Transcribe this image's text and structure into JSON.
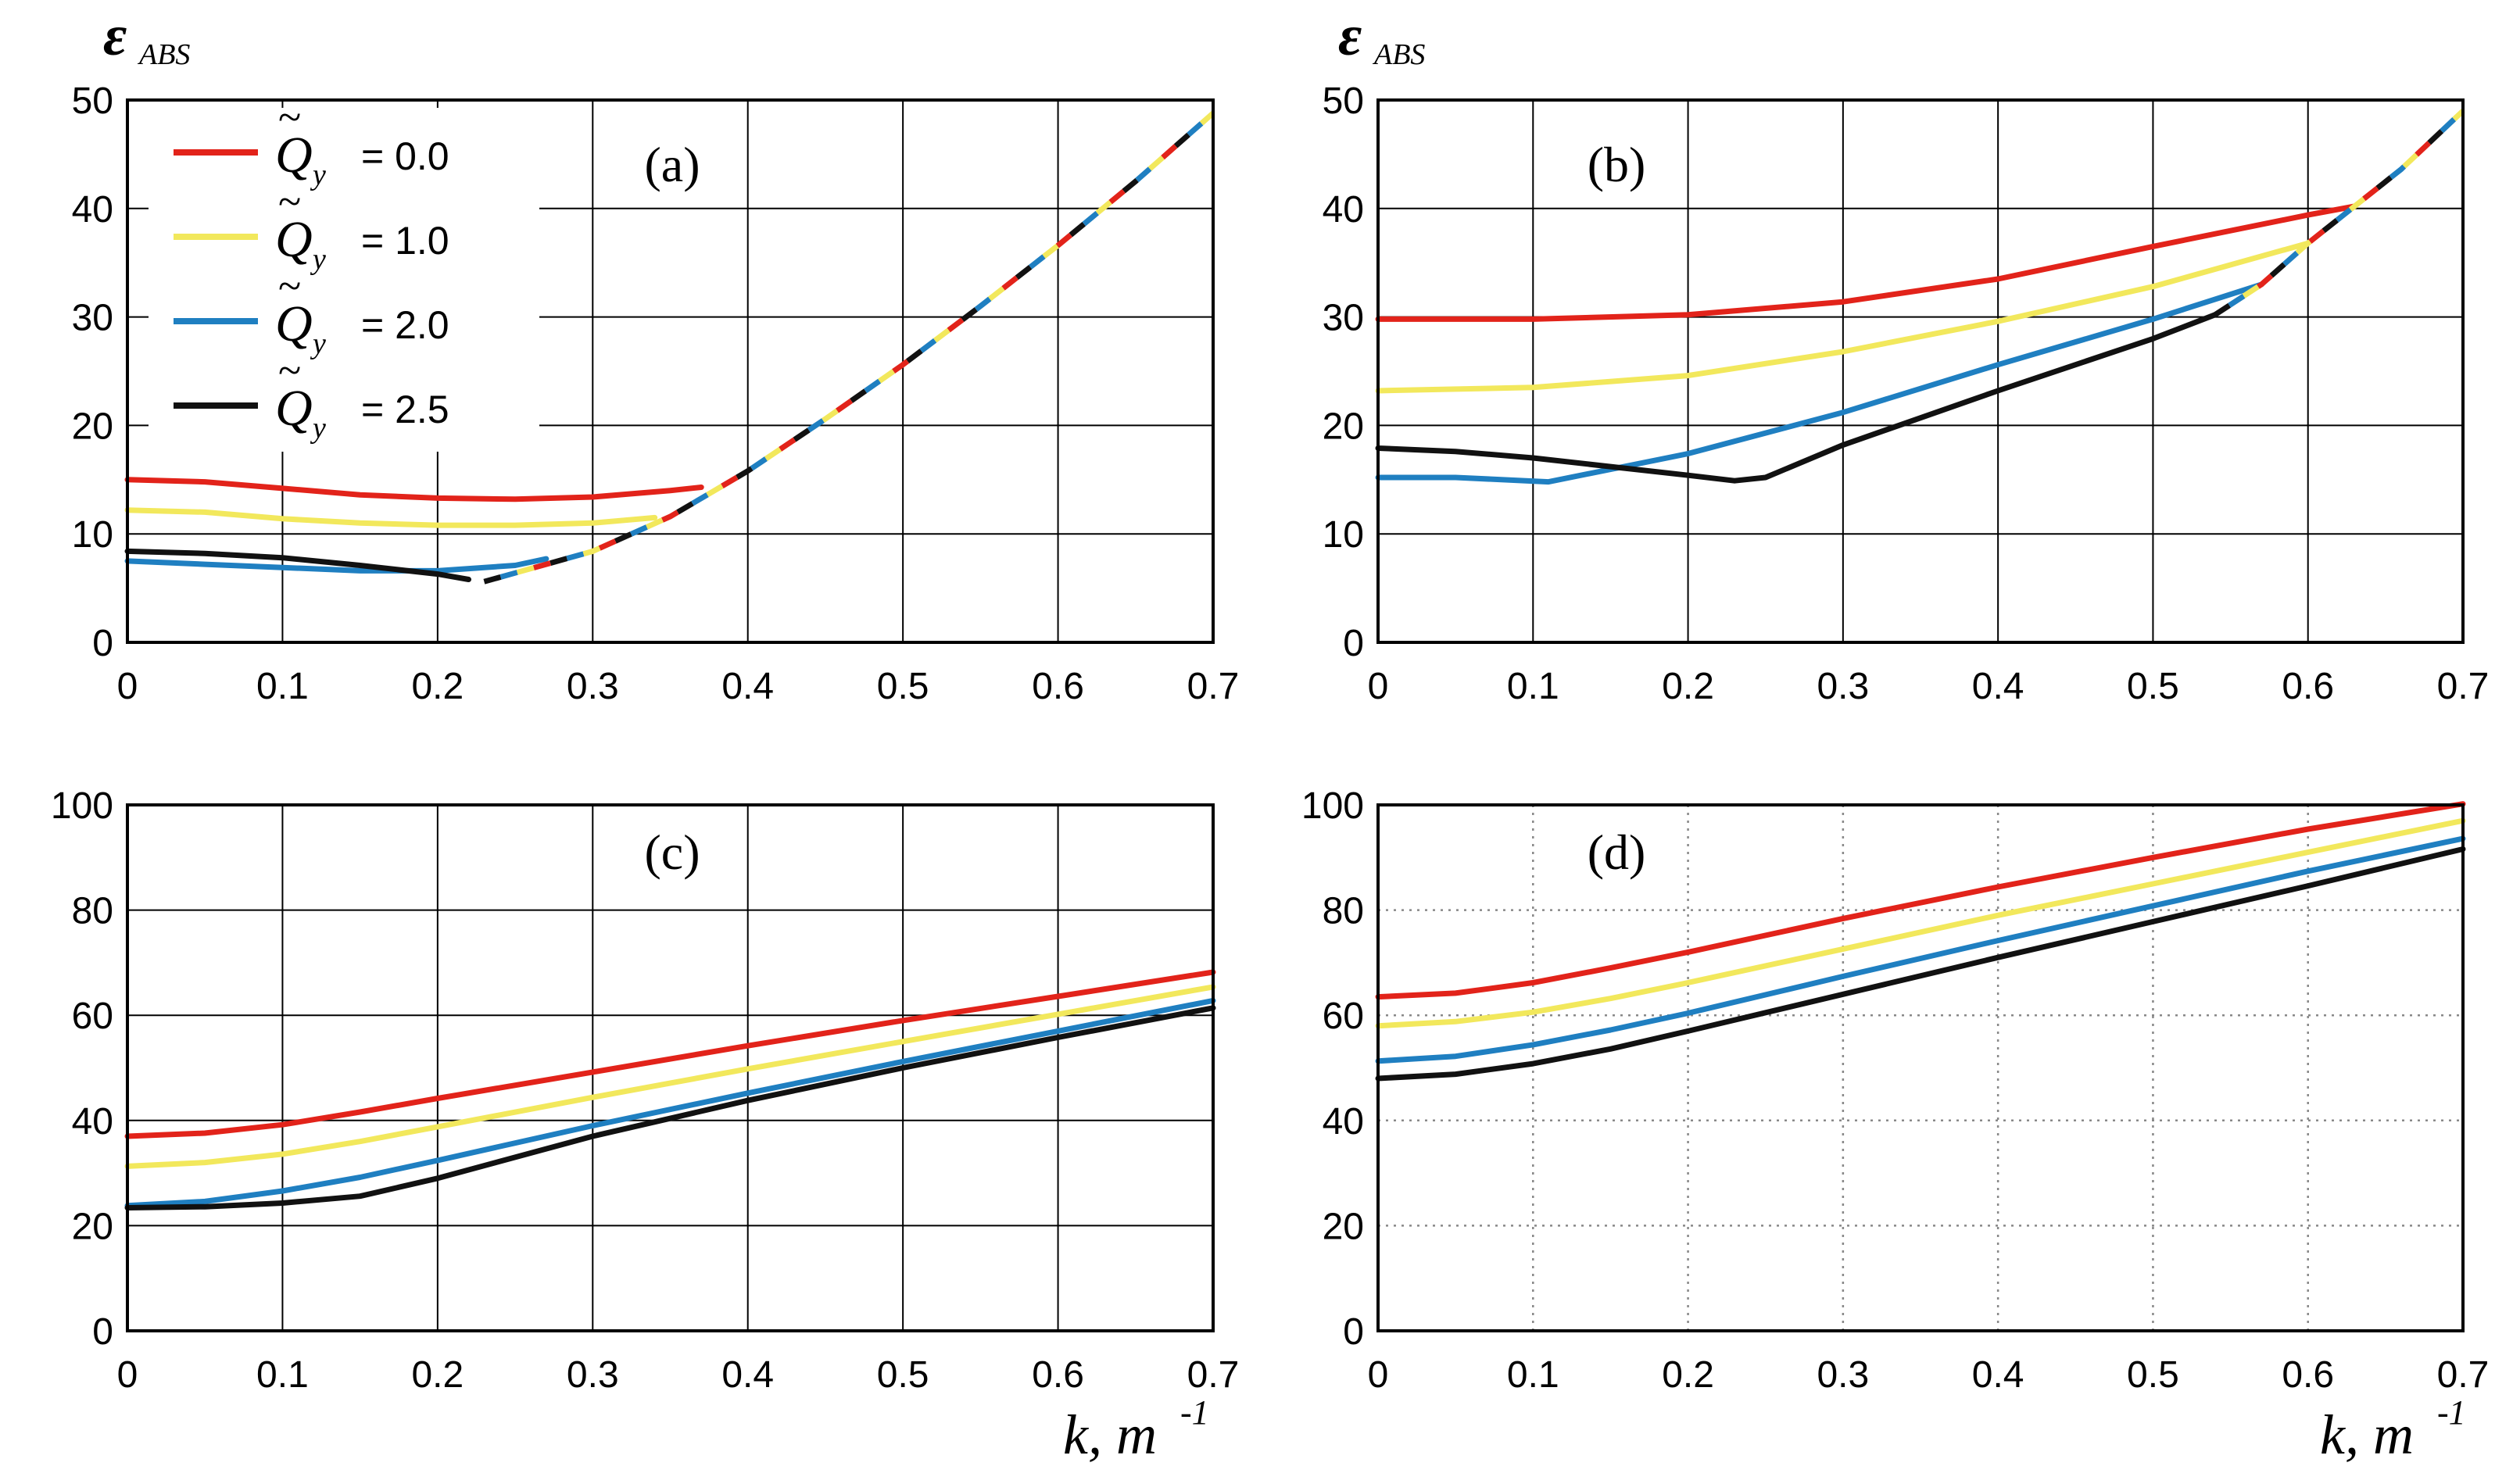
{
  "colors": {
    "red": "#e2231a",
    "yellow": "#f2e85c",
    "blue": "#1f7fc1",
    "black": "#111111"
  },
  "ylabel": {
    "symbol": "ε",
    "subscript": "ABS"
  },
  "xlabel": {
    "text": "k, m",
    "exponent": "-1"
  },
  "legend": {
    "symbol": "Q",
    "tilde": "~",
    "subscript": "y",
    "entries": [
      {
        "text": "= 0.0",
        "color": "red"
      },
      {
        "text": "= 1.0",
        "color": "yellow"
      },
      {
        "text": "= 2.0",
        "color": "blue"
      },
      {
        "text": "= 2.5",
        "color": "black"
      }
    ]
  },
  "chart_data": [
    {
      "panel": "a",
      "label": "(a)",
      "type": "line",
      "grid": "solid",
      "xlim": [
        0,
        0.7
      ],
      "ylim": [
        0,
        50
      ],
      "xticks": [
        "0",
        "0.1",
        "0.2",
        "0.3",
        "0.4",
        "0.5",
        "0.6",
        "0.7"
      ],
      "yticks": [
        "0",
        "10",
        "20",
        "30",
        "40",
        "50"
      ],
      "series": [
        {
          "name": "Q̃y = 0.0",
          "color": "red",
          "points": [
            [
              0,
              15
            ],
            [
              0.05,
              14.8
            ],
            [
              0.1,
              14.2
            ],
            [
              0.15,
              13.6
            ],
            [
              0.2,
              13.3
            ],
            [
              0.25,
              13.2
            ],
            [
              0.3,
              13.4
            ],
            [
              0.35,
              14
            ],
            [
              0.37,
              14.3
            ]
          ]
        },
        {
          "name": "Q̃y = 1.0",
          "color": "yellow",
          "points": [
            [
              0,
              12.2
            ],
            [
              0.05,
              12
            ],
            [
              0.1,
              11.4
            ],
            [
              0.15,
              11
            ],
            [
              0.2,
              10.8
            ],
            [
              0.25,
              10.8
            ],
            [
              0.3,
              11
            ],
            [
              0.34,
              11.5
            ]
          ]
        },
        {
          "name": "Q̃y = 2.0",
          "color": "blue",
          "points": [
            [
              0,
              7.5
            ],
            [
              0.05,
              7.2
            ],
            [
              0.1,
              6.9
            ],
            [
              0.15,
              6.6
            ],
            [
              0.2,
              6.6
            ],
            [
              0.25,
              7.1
            ],
            [
              0.27,
              7.7
            ]
          ]
        },
        {
          "name": "Q̃y = 2.5",
          "color": "black",
          "points": [
            [
              0,
              8.4
            ],
            [
              0.05,
              8.2
            ],
            [
              0.1,
              7.8
            ],
            [
              0.15,
              7.1
            ],
            [
              0.2,
              6.3
            ],
            [
              0.22,
              5.8
            ]
          ]
        }
      ],
      "envelope": [
        [
          0.23,
          5.6
        ],
        [
          0.3,
          8.4
        ],
        [
          0.35,
          11.6
        ],
        [
          0.4,
          15.8
        ],
        [
          0.45,
          20.6
        ],
        [
          0.5,
          25.6
        ],
        [
          0.55,
          31
        ],
        [
          0.6,
          36.6
        ],
        [
          0.65,
          42.5
        ],
        [
          0.7,
          48.8
        ]
      ],
      "envelope_colors": [
        "black",
        "blue",
        "yellow",
        "red"
      ]
    },
    {
      "panel": "b",
      "label": "(b)",
      "type": "line",
      "grid": "solid",
      "xlim": [
        0,
        0.7
      ],
      "ylim": [
        0,
        50
      ],
      "xticks": [
        "0",
        "0.1",
        "0.2",
        "0.3",
        "0.4",
        "0.5",
        "0.6",
        "0.7"
      ],
      "yticks": [
        "0",
        "10",
        "20",
        "30",
        "40",
        "50"
      ],
      "series": [
        {
          "name": "Q̃y = 0.0",
          "color": "red",
          "points": [
            [
              0,
              29.8
            ],
            [
              0.1,
              29.8
            ],
            [
              0.2,
              30.2
            ],
            [
              0.3,
              31.4
            ],
            [
              0.4,
              33.5
            ],
            [
              0.5,
              36.5
            ],
            [
              0.6,
              39.4
            ],
            [
              0.63,
              40.2
            ]
          ]
        },
        {
          "name": "Q̃y = 1.0",
          "color": "yellow",
          "points": [
            [
              0,
              23.2
            ],
            [
              0.1,
              23.5
            ],
            [
              0.2,
              24.6
            ],
            [
              0.3,
              26.8
            ],
            [
              0.4,
              29.6
            ],
            [
              0.5,
              32.8
            ],
            [
              0.6,
              36.8
            ]
          ]
        },
        {
          "name": "Q̃y = 2.0",
          "color": "blue",
          "points": [
            [
              0,
              15.2
            ],
            [
              0.05,
              15.2
            ],
            [
              0.11,
              14.8
            ],
            [
              0.2,
              17.4
            ],
            [
              0.3,
              21.2
            ],
            [
              0.4,
              25.6
            ],
            [
              0.5,
              29.8
            ],
            [
              0.57,
              33
            ]
          ]
        },
        {
          "name": "Q̃y = 2.5",
          "color": "black",
          "points": [
            [
              0,
              17.9
            ],
            [
              0.05,
              17.6
            ],
            [
              0.1,
              17
            ],
            [
              0.15,
              16.2
            ],
            [
              0.2,
              15.4
            ],
            [
              0.23,
              14.9
            ],
            [
              0.25,
              15.2
            ],
            [
              0.3,
              18.2
            ],
            [
              0.4,
              23.2
            ],
            [
              0.5,
              28
            ],
            [
              0.54,
              30.2
            ]
          ]
        }
      ],
      "envelope": [
        [
          0.54,
          30.2
        ],
        [
          0.57,
          33
        ],
        [
          0.6,
          36.8
        ],
        [
          0.63,
          40.2
        ],
        [
          0.66,
          43.6
        ],
        [
          0.7,
          49
        ]
      ],
      "envelope_colors": [
        "black",
        "blue",
        "yellow",
        "red"
      ]
    },
    {
      "panel": "c",
      "label": "(c)",
      "type": "line",
      "grid": "solid",
      "xlim": [
        0,
        0.7
      ],
      "ylim": [
        0,
        100
      ],
      "xticks": [
        "0",
        "0.1",
        "0.2",
        "0.3",
        "0.4",
        "0.5",
        "0.6",
        "0.7"
      ],
      "yticks": [
        "0",
        "20",
        "40",
        "60",
        "80",
        "100"
      ],
      "series": [
        {
          "name": "Q̃y = 0.0",
          "color": "red",
          "points": [
            [
              0,
              37
            ],
            [
              0.05,
              37.6
            ],
            [
              0.1,
              39.2
            ],
            [
              0.15,
              41.6
            ],
            [
              0.2,
              44.2
            ],
            [
              0.3,
              49.2
            ],
            [
              0.4,
              54.2
            ],
            [
              0.5,
              59
            ],
            [
              0.6,
              63.6
            ],
            [
              0.7,
              68.2
            ]
          ]
        },
        {
          "name": "Q̃y = 1.0",
          "color": "yellow",
          "points": [
            [
              0,
              31.3
            ],
            [
              0.05,
              32
            ],
            [
              0.1,
              33.6
            ],
            [
              0.15,
              36
            ],
            [
              0.2,
              38.8
            ],
            [
              0.3,
              44.4
            ],
            [
              0.4,
              49.8
            ],
            [
              0.5,
              55
            ],
            [
              0.6,
              60.2
            ],
            [
              0.7,
              65.4
            ]
          ]
        },
        {
          "name": "Q̃y = 2.0",
          "color": "blue",
          "points": [
            [
              0,
              23.8
            ],
            [
              0.05,
              24.6
            ],
            [
              0.1,
              26.6
            ],
            [
              0.15,
              29.2
            ],
            [
              0.2,
              32.4
            ],
            [
              0.3,
              39
            ],
            [
              0.4,
              45.2
            ],
            [
              0.5,
              51.2
            ],
            [
              0.6,
              57
            ],
            [
              0.7,
              62.8
            ]
          ]
        },
        {
          "name": "Q̃y = 2.5",
          "color": "black",
          "points": [
            [
              0,
              23.4
            ],
            [
              0.05,
              23.6
            ],
            [
              0.1,
              24.3
            ],
            [
              0.15,
              25.6
            ],
            [
              0.2,
              29
            ],
            [
              0.3,
              37
            ],
            [
              0.4,
              43.8
            ],
            [
              0.5,
              50
            ],
            [
              0.6,
              55.8
            ],
            [
              0.7,
              61.4
            ]
          ]
        }
      ]
    },
    {
      "panel": "d",
      "label": "(d)",
      "type": "line",
      "grid": "dotted",
      "xlim": [
        0,
        0.7
      ],
      "ylim": [
        0,
        100
      ],
      "xticks": [
        "0",
        "0.1",
        "0.2",
        "0.3",
        "0.4",
        "0.5",
        "0.6",
        "0.7"
      ],
      "yticks": [
        "0",
        "20",
        "40",
        "60",
        "80",
        "100"
      ],
      "series": [
        {
          "name": "Q̃y = 0.0",
          "color": "red",
          "points": [
            [
              0,
              63.5
            ],
            [
              0.05,
              64.2
            ],
            [
              0.1,
              66.2
            ],
            [
              0.15,
              69
            ],
            [
              0.2,
              72
            ],
            [
              0.3,
              78.4
            ],
            [
              0.4,
              84.4
            ],
            [
              0.5,
              90
            ],
            [
              0.6,
              95.4
            ],
            [
              0.7,
              100.2
            ]
          ]
        },
        {
          "name": "Q̃y = 1.0",
          "color": "yellow",
          "points": [
            [
              0,
              58
            ],
            [
              0.05,
              58.8
            ],
            [
              0.1,
              60.6
            ],
            [
              0.15,
              63.2
            ],
            [
              0.2,
              66.2
            ],
            [
              0.3,
              72.6
            ],
            [
              0.4,
              79
            ],
            [
              0.5,
              85
            ],
            [
              0.6,
              91
            ],
            [
              0.7,
              97
            ]
          ]
        },
        {
          "name": "Q̃y = 2.0",
          "color": "blue",
          "points": [
            [
              0,
              51.3
            ],
            [
              0.05,
              52.2
            ],
            [
              0.1,
              54.4
            ],
            [
              0.15,
              57.2
            ],
            [
              0.2,
              60.4
            ],
            [
              0.3,
              67.4
            ],
            [
              0.4,
              74.2
            ],
            [
              0.5,
              80.8
            ],
            [
              0.6,
              87.4
            ],
            [
              0.7,
              93.6
            ]
          ]
        },
        {
          "name": "Q̃y = 2.5",
          "color": "black",
          "points": [
            [
              0,
              48
            ],
            [
              0.05,
              48.8
            ],
            [
              0.1,
              50.8
            ],
            [
              0.15,
              53.6
            ],
            [
              0.2,
              57
            ],
            [
              0.3,
              64
            ],
            [
              0.4,
              71
            ],
            [
              0.5,
              77.8
            ],
            [
              0.6,
              84.6
            ],
            [
              0.7,
              91.6
            ]
          ]
        }
      ]
    }
  ]
}
